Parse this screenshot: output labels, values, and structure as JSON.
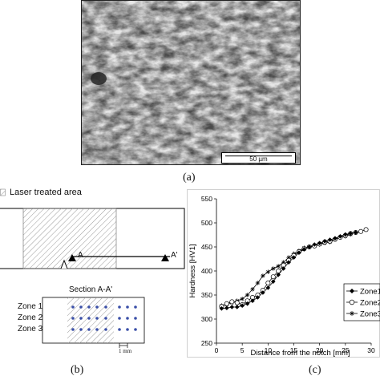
{
  "figure": {
    "panel_a": {
      "label": "(a)",
      "scale_bar_label": "50 µm"
    },
    "panel_b": {
      "label": "(b)",
      "legend_label": "Laser treated area",
      "point_a_label": "A",
      "point_a_prime_label": "A'",
      "section_title": "Section A-A'",
      "zones": [
        "Zone 1",
        "Zone 2",
        "Zone 3"
      ],
      "dimension_label": "1 mm"
    },
    "panel_c": {
      "label": "(c)"
    }
  },
  "chart_data": {
    "type": "scatter",
    "title": "",
    "xlabel": "Distance from the notch [mm]",
    "ylabel": "Hardness [HV1]",
    "xlim": [
      0,
      30
    ],
    "ylim": [
      250,
      550
    ],
    "xticks": [
      0,
      5,
      10,
      15,
      20,
      25,
      30
    ],
    "yticks": [
      250,
      300,
      350,
      400,
      450,
      500,
      550
    ],
    "grid": false,
    "legend_position": "bottom-right",
    "series": [
      {
        "name": "Zone1",
        "marker": "diamond-filled",
        "color": "#000000",
        "x": [
          1,
          2,
          3,
          4,
          5,
          6,
          7,
          8,
          9,
          10,
          11,
          12,
          13,
          14,
          15,
          16,
          17,
          18,
          19,
          20,
          21,
          22,
          23,
          24,
          25,
          26,
          27
        ],
        "y": [
          322,
          323,
          325,
          325,
          328,
          332,
          338,
          345,
          355,
          365,
          378,
          392,
          405,
          418,
          428,
          438,
          445,
          450,
          455,
          458,
          462,
          465,
          468,
          472,
          476,
          478,
          480
        ]
      },
      {
        "name": "Zone2",
        "marker": "circle-open",
        "color": "#000000",
        "x": [
          1,
          2,
          3,
          4,
          5,
          6,
          7,
          8,
          9,
          10,
          11,
          12,
          13,
          14,
          15,
          16,
          17,
          18,
          19,
          20,
          21,
          22,
          23,
          24,
          25,
          26,
          27,
          28,
          29
        ],
        "y": [
          326,
          332,
          336,
          334,
          330,
          338,
          345,
          350,
          360,
          375,
          388,
          400,
          412,
          422,
          432,
          440,
          446,
          450,
          452,
          456,
          460,
          462,
          466,
          470,
          474,
          478,
          480,
          482,
          486
        ]
      },
      {
        "name": "Zone3",
        "marker": "star",
        "color": "#000000",
        "x": [
          1,
          2,
          3,
          4,
          5,
          6,
          7,
          8,
          9,
          10,
          11,
          12,
          13,
          14,
          15,
          16,
          17,
          18,
          19,
          20,
          21,
          22,
          23,
          24,
          25,
          26
        ],
        "y": [
          328,
          330,
          334,
          338,
          342,
          350,
          362,
          375,
          390,
          398,
          405,
          410,
          418,
          428,
          436,
          442,
          448,
          450,
          452,
          455,
          458,
          460,
          465,
          470,
          472,
          476
        ]
      }
    ]
  }
}
